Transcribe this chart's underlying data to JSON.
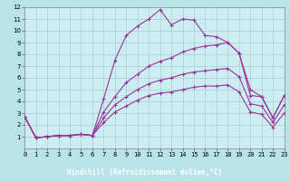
{
  "xlabel": "Windchill (Refroidissement éolien,°C)",
  "bg_color": "#b8e4e8",
  "plot_bg_color": "#cceef2",
  "grid_color": "#aacccc",
  "line_color": "#993399",
  "xlabel_bg": "#7755aa",
  "xlabel_fg": "#ffffff",
  "xlim": [
    0,
    23
  ],
  "ylim": [
    0,
    12
  ],
  "xtick_vals": [
    0,
    1,
    2,
    3,
    4,
    5,
    6,
    7,
    8,
    9,
    10,
    11,
    12,
    13,
    14,
    15,
    16,
    17,
    18,
    19,
    20,
    21,
    22,
    23
  ],
  "ytick_vals": [
    1,
    2,
    3,
    4,
    5,
    6,
    7,
    8,
    9,
    10,
    11,
    12
  ],
  "series": [
    {
      "x": [
        0,
        1,
        2,
        3,
        4,
        5,
        6,
        7,
        8,
        9,
        10,
        11,
        12,
        13,
        14,
        15,
        16,
        17,
        18,
        19,
        20,
        21,
        22,
        23
      ],
      "y": [
        2.7,
        0.9,
        1.0,
        1.1,
        1.1,
        1.2,
        1.1,
        4.2,
        7.5,
        9.6,
        10.4,
        11.0,
        11.8,
        10.5,
        11.0,
        10.9,
        9.6,
        9.5,
        9.0,
        8.1,
        5.0,
        4.4,
        2.6,
        4.5
      ],
      "marker": true,
      "linestyle": "-"
    },
    {
      "x": [
        0,
        1,
        2,
        3,
        4,
        5,
        6,
        7,
        8,
        9,
        10,
        11,
        12,
        13,
        14,
        15,
        16,
        17,
        18,
        19,
        20,
        21,
        22,
        23
      ],
      "y": [
        2.7,
        0.9,
        1.0,
        1.1,
        1.1,
        1.2,
        1.1,
        3.1,
        4.4,
        5.6,
        6.3,
        7.0,
        7.4,
        7.7,
        8.2,
        8.5,
        8.7,
        8.8,
        9.0,
        8.1,
        4.5,
        4.4,
        2.6,
        4.5
      ],
      "marker": true,
      "linestyle": "-"
    },
    {
      "x": [
        0,
        1,
        2,
        3,
        4,
        5,
        6,
        7,
        8,
        9,
        10,
        11,
        12,
        13,
        14,
        15,
        16,
        17,
        18,
        19,
        20,
        21,
        22,
        23
      ],
      "y": [
        2.7,
        0.9,
        1.0,
        1.1,
        1.1,
        1.2,
        1.1,
        2.6,
        3.7,
        4.4,
        5.0,
        5.5,
        5.8,
        6.0,
        6.3,
        6.5,
        6.6,
        6.7,
        6.8,
        6.1,
        3.8,
        3.6,
        2.2,
        3.7
      ],
      "marker": true,
      "linestyle": "-"
    },
    {
      "x": [
        0,
        1,
        2,
        3,
        4,
        5,
        6,
        7,
        8,
        9,
        10,
        11,
        12,
        13,
        14,
        15,
        16,
        17,
        18,
        19,
        20,
        21,
        22,
        23
      ],
      "y": [
        2.7,
        0.9,
        1.0,
        1.1,
        1.1,
        1.2,
        1.1,
        2.2,
        3.1,
        3.6,
        4.1,
        4.5,
        4.7,
        4.8,
        5.0,
        5.2,
        5.3,
        5.3,
        5.4,
        4.8,
        3.1,
        2.9,
        1.8,
        3.0
      ],
      "marker": true,
      "linestyle": "-"
    }
  ]
}
